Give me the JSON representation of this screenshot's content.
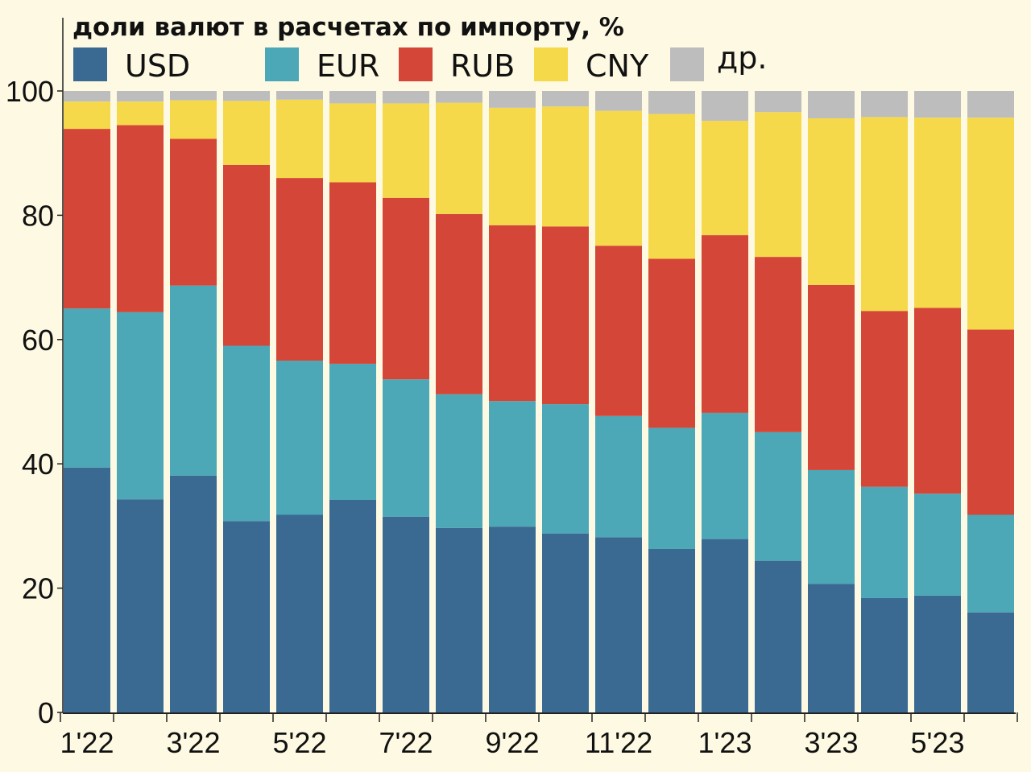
{
  "chart_data": {
    "type": "bar",
    "stacked": true,
    "title": "доли валют в расчетах по импорту, %",
    "ylim": [
      0,
      100
    ],
    "yticks": [
      0,
      20,
      40,
      60,
      80,
      100
    ],
    "xtick_labels": [
      "1'22",
      "3'22",
      "5'22",
      "7'22",
      "9'22",
      "11'22",
      "1'23",
      "3'23",
      "5'23"
    ],
    "categories": [
      "1'22",
      "2'22",
      "3'22",
      "4'22",
      "5'22",
      "6'22",
      "7'22",
      "8'22",
      "9'22",
      "10'22",
      "11'22",
      "12'22",
      "1'23",
      "2'23",
      "3'23",
      "4'23",
      "5'23",
      "6'23"
    ],
    "legend_position": "top",
    "grid": false,
    "series": [
      {
        "name": "USD",
        "color": "#3a6a92",
        "values": [
          39.4,
          34.3,
          38.1,
          30.8,
          31.8,
          34.2,
          31.5,
          29.7,
          29.9,
          28.8,
          28.2,
          26.3,
          27.9,
          24.4,
          20.7,
          18.4,
          18.8,
          16.1
        ]
      },
      {
        "name": "EUR",
        "color": "#4ca7b6",
        "values": [
          25.6,
          30.1,
          30.6,
          28.2,
          24.8,
          21.9,
          22.1,
          21.5,
          20.2,
          20.8,
          19.5,
          19.5,
          20.3,
          20.7,
          18.3,
          17.9,
          16.4,
          15.7
        ]
      },
      {
        "name": "RUB",
        "color": "#d44637",
        "values": [
          28.9,
          30.1,
          23.6,
          29.1,
          29.4,
          29.2,
          29.2,
          29.0,
          28.3,
          28.6,
          27.4,
          27.2,
          28.6,
          28.2,
          29.8,
          28.3,
          29.9,
          29.8
        ]
      },
      {
        "name": "CNY",
        "color": "#f6d94b",
        "values": [
          4.4,
          3.8,
          6.2,
          10.3,
          12.6,
          12.7,
          15.2,
          17.9,
          18.9,
          19.3,
          21.7,
          23.3,
          18.4,
          23.3,
          26.8,
          31.2,
          30.6,
          34.1
        ]
      },
      {
        "name": "др.",
        "color": "#bdbdbd",
        "values": [
          1.7,
          1.7,
          1.5,
          1.6,
          1.4,
          2.0,
          2.0,
          1.9,
          2.7,
          2.5,
          3.2,
          3.7,
          4.8,
          3.4,
          4.4,
          4.2,
          4.3,
          4.3
        ]
      }
    ]
  }
}
